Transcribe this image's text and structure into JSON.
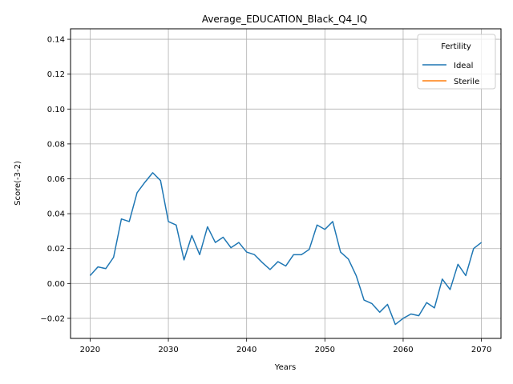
{
  "chart_data": {
    "type": "line",
    "title": "Average_EDUCATION_Black_Q4_IQ",
    "xlabel": "Years",
    "ylabel": "Score(-3-2)",
    "xlim": [
      2017.5,
      2072.5
    ],
    "ylim": [
      -0.0315,
      0.146
    ],
    "xticks": [
      2020,
      2030,
      2040,
      2050,
      2060,
      2070
    ],
    "yticks": [
      -0.02,
      0.0,
      0.02,
      0.04,
      0.06,
      0.08,
      0.1,
      0.12,
      0.14
    ],
    "ytick_labels": [
      "−0.02",
      "0.00",
      "0.02",
      "0.04",
      "0.06",
      "0.08",
      "0.10",
      "0.12",
      "0.14"
    ],
    "grid": true,
    "legend": {
      "title": "Fertility",
      "placement": "top-right"
    },
    "series": [
      {
        "name": "Ideal",
        "color": "#1f77b4",
        "x": [
          2020,
          2021,
          2022,
          2023,
          2024,
          2025,
          2026,
          2027,
          2028,
          2029,
          2030,
          2031,
          2032,
          2033,
          2034,
          2035,
          2036,
          2037,
          2038,
          2039,
          2040,
          2041,
          2042,
          2043,
          2044,
          2045,
          2046,
          2047,
          2048,
          2049,
          2050,
          2051,
          2052,
          2053,
          2054,
          2055,
          2056,
          2057,
          2058,
          2059,
          2060,
          2061,
          2062,
          2063,
          2064,
          2065,
          2066,
          2067,
          2068,
          2069,
          2070
        ],
        "values": [
          0.0045,
          0.0095,
          0.0085,
          0.015,
          0.037,
          0.0355,
          0.052,
          0.058,
          0.0635,
          0.059,
          0.0355,
          0.0335,
          0.0135,
          0.0275,
          0.0165,
          0.0325,
          0.0235,
          0.0265,
          0.0205,
          0.0235,
          0.018,
          0.0165,
          0.012,
          0.008,
          0.0125,
          0.01,
          0.0165,
          0.0165,
          0.0195,
          0.0335,
          0.031,
          0.0355,
          0.018,
          0.014,
          0.0045,
          -0.0095,
          -0.0115,
          -0.0165,
          -0.012,
          -0.0235,
          -0.02,
          -0.0175,
          -0.0185,
          -0.011,
          -0.014,
          0.0025,
          -0.0035,
          0.011,
          0.0045,
          0.02,
          0.0235
        ]
      },
      {
        "name": "Sterile",
        "color": "#ff7f0e",
        "x": [],
        "values": []
      }
    ]
  }
}
